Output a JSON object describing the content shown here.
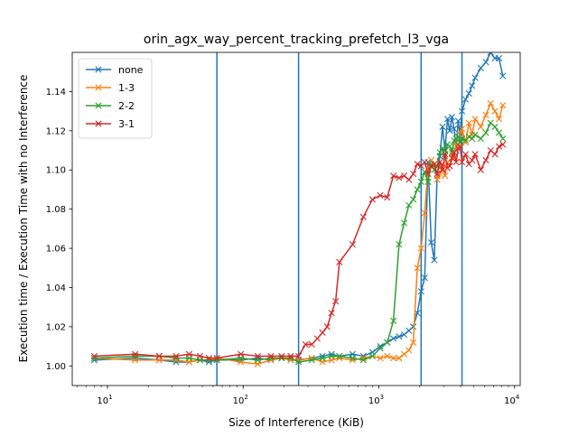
{
  "chart_data": {
    "type": "line",
    "title": "orin_agx_way_percent_tracking_prefetch_l3_vga",
    "xlabel": "Size of Interference (KiB)",
    "ylabel": "Execution time / Execution Time with no Interference",
    "xscale": "log",
    "xlim": [
      5.5,
      11000
    ],
    "ylim": [
      0.99,
      1.16
    ],
    "x_ticks": [
      {
        "value": 10,
        "base": "10",
        "exp": "1"
      },
      {
        "value": 100,
        "base": "10",
        "exp": "2"
      },
      {
        "value": 1000,
        "base": "10",
        "exp": "3"
      },
      {
        "value": 10000,
        "base": "10",
        "exp": "4"
      }
    ],
    "y_ticks": [
      {
        "value": 1.0,
        "label": "1.00"
      },
      {
        "value": 1.02,
        "label": "1.02"
      },
      {
        "value": 1.04,
        "label": "1.04"
      },
      {
        "value": 1.06,
        "label": "1.06"
      },
      {
        "value": 1.08,
        "label": "1.08"
      },
      {
        "value": 1.1,
        "label": "1.10"
      },
      {
        "value": 1.12,
        "label": "1.12"
      },
      {
        "value": 1.14,
        "label": "1.14"
      }
    ],
    "vlines": [
      64,
      256,
      2048,
      4096
    ],
    "vline_color": "#1f77b4",
    "grid": false,
    "legend_position": "top-left",
    "series": [
      {
        "name": "none",
        "color": "#1f77b4",
        "x": [
          8,
          16,
          24,
          32,
          40,
          48,
          56,
          64,
          96,
          128,
          160,
          192,
          224,
          256,
          320,
          384,
          448,
          512,
          640,
          768,
          896,
          1024,
          1152,
          1280,
          1408,
          1536,
          1664,
          1792,
          1920,
          2048,
          2176,
          2304,
          2432,
          2560,
          2688,
          2816,
          2944,
          3072,
          3200,
          3328,
          3456,
          3584,
          3712,
          3840,
          3968,
          4096,
          4352,
          4608,
          4864,
          5120,
          5632,
          6144,
          6656,
          7168,
          7680,
          8192
        ],
        "y": [
          1.003,
          1.004,
          1.003,
          1.002,
          1.002,
          1.003,
          1.002,
          1.003,
          1.003,
          1.004,
          1.003,
          1.004,
          1.003,
          1.003,
          1.004,
          1.005,
          1.006,
          1.005,
          1.006,
          1.005,
          1.007,
          1.01,
          1.012,
          1.014,
          1.015,
          1.016,
          1.018,
          1.02,
          1.027,
          1.038,
          1.045,
          1.104,
          1.063,
          1.054,
          1.097,
          1.107,
          1.122,
          1.11,
          1.126,
          1.12,
          1.127,
          1.121,
          1.11,
          1.125,
          1.118,
          1.13,
          1.136,
          1.139,
          1.143,
          1.147,
          1.152,
          1.155,
          1.16,
          1.157,
          1.157,
          1.148
        ]
      },
      {
        "name": "1-3",
        "color": "#ff7f0e",
        "x": [
          8,
          16,
          24,
          32,
          40,
          48,
          56,
          64,
          96,
          128,
          160,
          192,
          224,
          256,
          320,
          384,
          448,
          512,
          640,
          768,
          896,
          1024,
          1152,
          1280,
          1408,
          1536,
          1664,
          1792,
          1920,
          2048,
          2176,
          2304,
          2432,
          2560,
          2688,
          2816,
          2944,
          3072,
          3200,
          3328,
          3456,
          3584,
          3712,
          3840,
          3968,
          4096,
          4352,
          4608,
          4864,
          5120,
          5632,
          6144,
          6656,
          7168,
          7680,
          8192
        ],
        "y": [
          1.004,
          1.003,
          1.003,
          1.003,
          1.002,
          1.003,
          1.003,
          1.004,
          1.002,
          1.001,
          1.003,
          1.004,
          1.003,
          1.003,
          1.004,
          1.002,
          1.003,
          1.004,
          1.003,
          1.004,
          1.005,
          1.004,
          1.005,
          1.004,
          1.004,
          1.006,
          1.008,
          1.012,
          1.05,
          1.06,
          1.078,
          1.101,
          1.105,
          1.103,
          1.095,
          1.098,
          1.103,
          1.097,
          1.104,
          1.102,
          1.108,
          1.106,
          1.114,
          1.112,
          1.118,
          1.121,
          1.114,
          1.124,
          1.118,
          1.126,
          1.122,
          1.128,
          1.134,
          1.13,
          1.126,
          1.133
        ]
      },
      {
        "name": "2-2",
        "color": "#2ca02c",
        "x": [
          8,
          16,
          24,
          32,
          40,
          48,
          56,
          64,
          96,
          128,
          160,
          192,
          224,
          256,
          320,
          384,
          448,
          512,
          640,
          768,
          896,
          1024,
          1152,
          1280,
          1408,
          1536,
          1664,
          1792,
          1920,
          2048,
          2176,
          2304,
          2432,
          2560,
          2688,
          2816,
          2944,
          3072,
          3200,
          3328,
          3456,
          3584,
          3712,
          3840,
          3968,
          4096,
          4352,
          4608,
          4864,
          5120,
          5632,
          6144,
          6656,
          7168,
          7680,
          8192
        ],
        "y": [
          1.004,
          1.005,
          1.005,
          1.004,
          1.004,
          1.003,
          1.003,
          1.003,
          1.004,
          1.003,
          1.004,
          1.004,
          1.004,
          1.002,
          1.003,
          1.004,
          1.005,
          1.005,
          1.004,
          1.003,
          1.005,
          1.009,
          1.012,
          1.023,
          1.062,
          1.073,
          1.082,
          1.085,
          1.09,
          1.094,
          1.099,
          1.094,
          1.103,
          1.1,
          1.102,
          1.109,
          1.111,
          1.107,
          1.113,
          1.112,
          1.109,
          1.115,
          1.116,
          1.117,
          1.114,
          1.116,
          1.115,
          1.117,
          1.116,
          1.118,
          1.116,
          1.119,
          1.124,
          1.122,
          1.119,
          1.116
        ]
      },
      {
        "name": "3-1",
        "color": "#d62728",
        "x": [
          8,
          16,
          24,
          32,
          40,
          48,
          56,
          64,
          96,
          128,
          160,
          192,
          224,
          256,
          288,
          320,
          352,
          384,
          416,
          448,
          480,
          512,
          640,
          768,
          896,
          1024,
          1152,
          1280,
          1408,
          1536,
          1664,
          1792,
          1920,
          2048,
          2176,
          2304,
          2432,
          2560,
          2688,
          2816,
          2944,
          3072,
          3200,
          3328,
          3456,
          3584,
          3712,
          3840,
          3968,
          4096,
          4352,
          4608,
          4864,
          5120,
          5632,
          6144,
          6656,
          7168,
          7680,
          8192
        ],
        "y": [
          1.005,
          1.006,
          1.005,
          1.005,
          1.006,
          1.005,
          1.004,
          1.004,
          1.006,
          1.005,
          1.005,
          1.005,
          1.005,
          1.005,
          1.011,
          1.011,
          1.014,
          1.017,
          1.02,
          1.027,
          1.033,
          1.053,
          1.062,
          1.076,
          1.085,
          1.087,
          1.086,
          1.097,
          1.096,
          1.097,
          1.095,
          1.098,
          1.103,
          1.102,
          1.104,
          1.098,
          1.102,
          1.103,
          1.098,
          1.104,
          1.1,
          1.108,
          1.101,
          1.102,
          1.106,
          1.109,
          1.104,
          1.111,
          1.112,
          1.104,
          1.108,
          1.103,
          1.105,
          1.108,
          1.1,
          1.105,
          1.11,
          1.108,
          1.112,
          1.113
        ]
      }
    ]
  }
}
